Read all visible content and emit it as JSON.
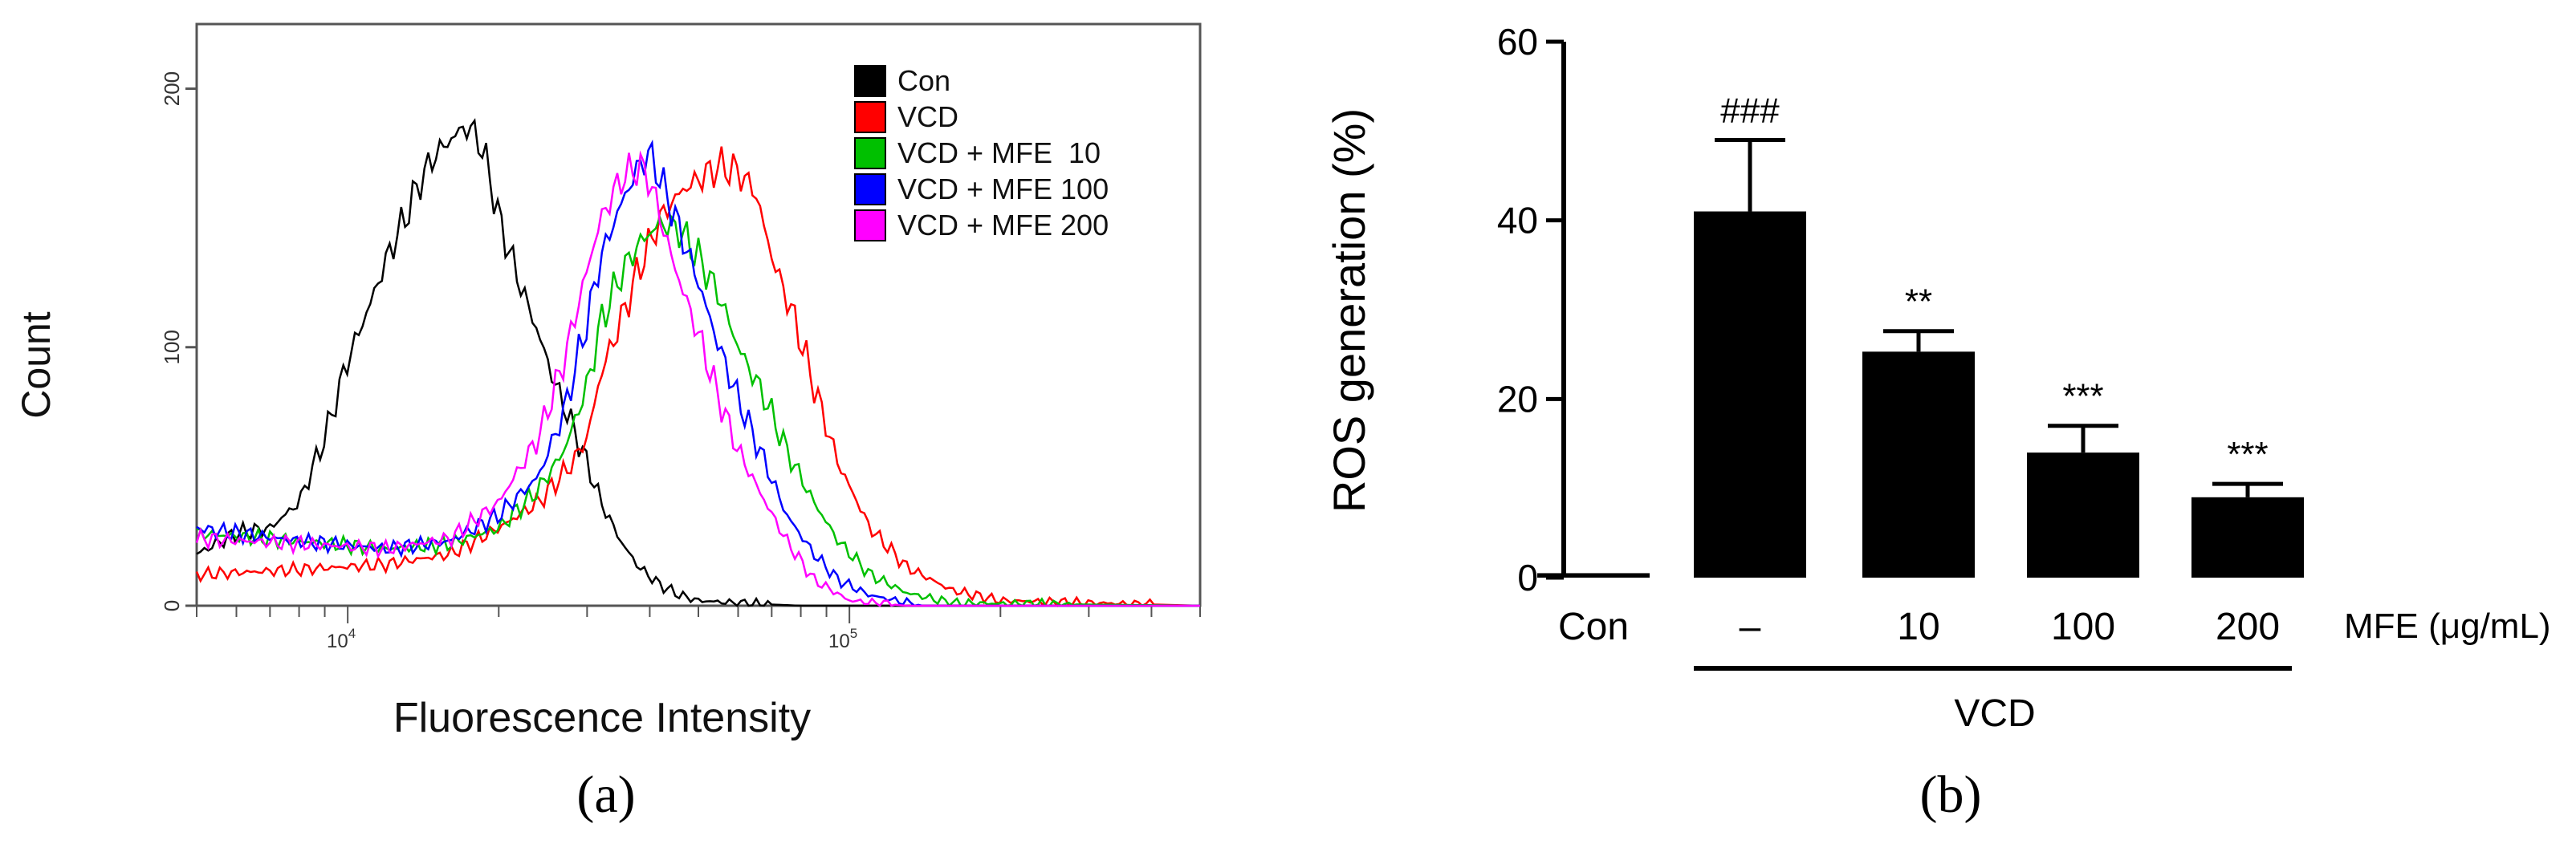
{
  "panels": {
    "a_label": "(a)",
    "b_label": "(b)"
  },
  "colors": {
    "con": "#000000",
    "vcd": "#ff0000",
    "mfe10": "#00c000",
    "mfe100": "#0000ff",
    "mfe200": "#ff00ff",
    "bar": "#000000"
  },
  "chart_data": [
    {
      "type": "line",
      "title": "",
      "xlabel": "Fluorescence Intensity",
      "ylabel": "Count",
      "xscale": "log",
      "xlim": [
        5000,
        500000
      ],
      "ylim": [
        0,
        225
      ],
      "x_ticks": [
        {
          "value": 10000,
          "base": "10",
          "exp": "4"
        },
        {
          "value": 100000,
          "base": "10",
          "exp": "5"
        }
      ],
      "y_ticks": [
        {
          "value": 0,
          "label": "0"
        },
        {
          "value": 100,
          "label": "100"
        },
        {
          "value": 200,
          "label": "200"
        }
      ],
      "legend_position": "top-right",
      "series": [
        {
          "name": "Con",
          "color": "#000000",
          "x": [
            5000,
            6000,
            7000,
            8000,
            9000,
            10000,
            11000,
            12000,
            13000,
            14000,
            15000,
            16000,
            17000,
            18000,
            19000,
            20000,
            22000,
            24000,
            26000,
            28000,
            30000,
            32000,
            35000,
            38000,
            42000,
            46000,
            50000,
            60000,
            80000,
            100000,
            500000
          ],
          "y": [
            20,
            28,
            30,
            40,
            65,
            95,
            115,
            135,
            150,
            165,
            175,
            180,
            185,
            183,
            170,
            150,
            125,
            105,
            85,
            70,
            55,
            40,
            25,
            15,
            8,
            4,
            2,
            1,
            0,
            0,
            0
          ]
        },
        {
          "name": "VCD",
          "color": "#ff0000",
          "x": [
            5000,
            8000,
            12000,
            16000,
            20000,
            24000,
            28000,
            30000,
            32000,
            35000,
            38000,
            42000,
            46000,
            50000,
            55000,
            60000,
            65000,
            70000,
            78000,
            85000,
            95000,
            110000,
            130000,
            160000,
            200000,
            500000
          ],
          "y": [
            12,
            14,
            16,
            20,
            30,
            40,
            55,
            65,
            90,
            110,
            130,
            150,
            160,
            165,
            170,
            168,
            160,
            135,
            110,
            85,
            55,
            30,
            15,
            6,
            2,
            0
          ]
        },
        {
          "name": "VCD + MFE  10",
          "color": "#00c000",
          "x": [
            5000,
            8000,
            12000,
            16000,
            20000,
            24000,
            27000,
            30000,
            32000,
            35000,
            38000,
            42000,
            46000,
            50000,
            55000,
            60000,
            68000,
            75000,
            85000,
            95000,
            110000,
            130000,
            160000,
            500000
          ],
          "y": [
            28,
            25,
            22,
            24,
            30,
            45,
            60,
            85,
            110,
            128,
            140,
            148,
            145,
            135,
            120,
            100,
            80,
            60,
            40,
            25,
            12,
            5,
            1,
            0
          ]
        },
        {
          "name": "VCD + MFE 100",
          "color": "#0000ff",
          "x": [
            5000,
            8000,
            12000,
            16000,
            20000,
            24000,
            27000,
            30000,
            32000,
            35000,
            38000,
            40000,
            42000,
            45000,
            50000,
            55000,
            60000,
            68000,
            75000,
            85000,
            95000,
            110000,
            140000,
            500000
          ],
          "y": [
            30,
            25,
            22,
            25,
            35,
            50,
            75,
            110,
            135,
            155,
            170,
            175,
            165,
            150,
            125,
            100,
            80,
            55,
            35,
            20,
            10,
            4,
            0,
            0
          ]
        },
        {
          "name": "VCD + MFE 200",
          "color": "#ff00ff",
          "x": [
            5000,
            8000,
            12000,
            16000,
            20000,
            24000,
            27000,
            30000,
            32000,
            35000,
            38000,
            40000,
            42000,
            45000,
            50000,
            55000,
            60000,
            68000,
            75000,
            85000,
            100000,
            130000,
            500000
          ],
          "y": [
            26,
            24,
            22,
            26,
            40,
            65,
            95,
            130,
            150,
            165,
            170,
            165,
            150,
            130,
            105,
            80,
            60,
            40,
            25,
            10,
            2,
            0,
            0
          ]
        }
      ]
    },
    {
      "type": "bar",
      "title": "",
      "xlabel": "MFE (μg/mL)",
      "group_label": "VCD",
      "ylabel": "ROS generation (%)",
      "ylim": [
        0,
        60
      ],
      "y_ticks": [
        {
          "value": 0,
          "label": "0"
        },
        {
          "value": 20,
          "label": "20"
        },
        {
          "value": 40,
          "label": "40"
        },
        {
          "value": 60,
          "label": "60"
        }
      ],
      "categories": [
        "Con",
        "–",
        "10",
        "100",
        "200"
      ],
      "values": [
        0.5,
        41,
        25.3,
        14,
        9
      ],
      "errors": [
        0.2,
        8,
        2.3,
        3,
        1.5
      ],
      "annotations": [
        "",
        "###",
        "**",
        "***",
        "***"
      ]
    }
  ]
}
